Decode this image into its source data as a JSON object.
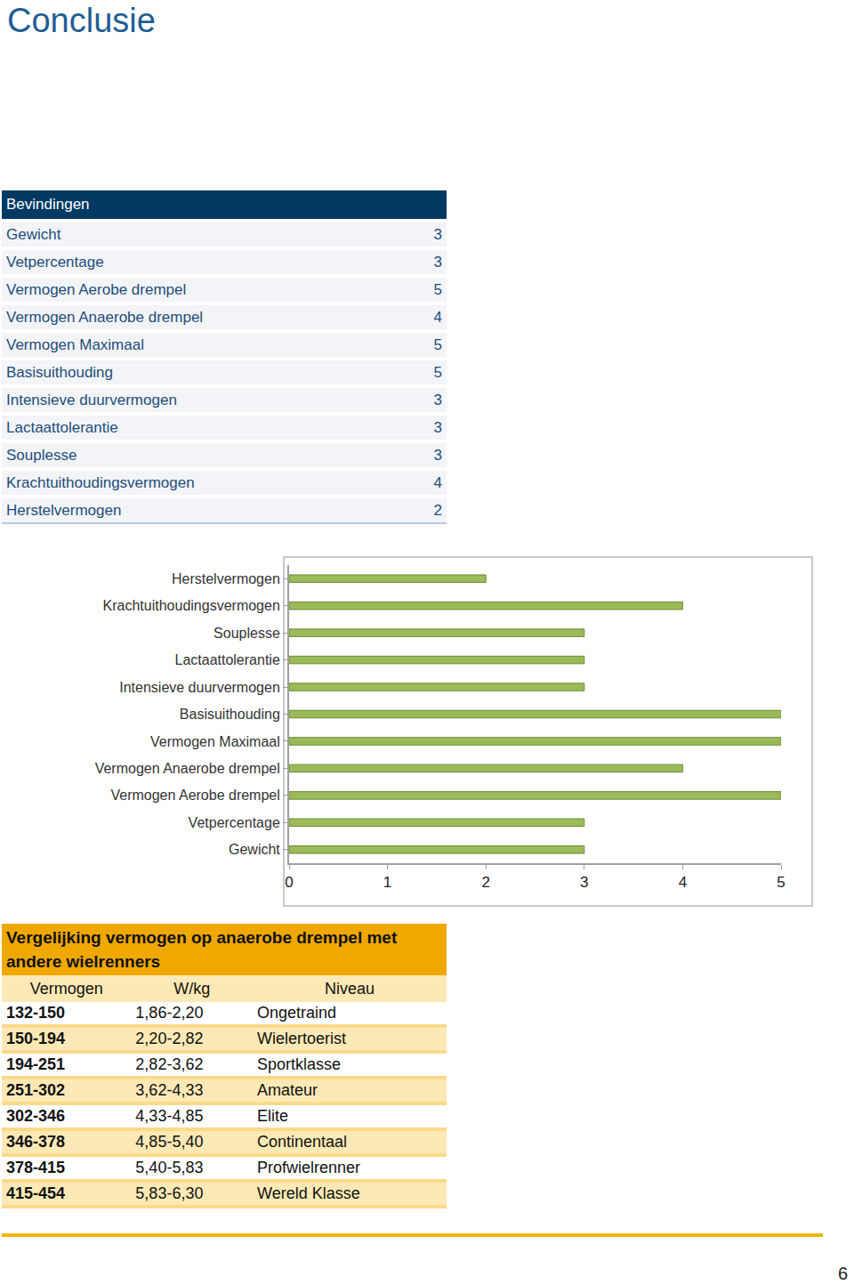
{
  "title": "Conclusie",
  "findings": {
    "header": "Bevindingen",
    "rows": [
      [
        "Gewicht",
        3
      ],
      [
        "Vetpercentage",
        3
      ],
      [
        "Vermogen Aerobe drempel",
        5
      ],
      [
        "Vermogen Anaerobe drempel",
        4
      ],
      [
        "Vermogen Maximaal",
        5
      ],
      [
        "Basisuithouding",
        5
      ],
      [
        "Intensieve duurvermogen",
        3
      ],
      [
        "Lactaattolerantie",
        3
      ],
      [
        "Souplesse",
        3
      ],
      [
        "Krachtuithoudingsvermogen",
        4
      ],
      [
        "Herstelvermogen",
        2
      ]
    ]
  },
  "chart_data": {
    "type": "bar",
    "orientation": "horizontal",
    "categories": [
      "Gewicht",
      "Vetpercentage",
      "Vermogen Aerobe drempel",
      "Vermogen Anaerobe drempel",
      "Vermogen Maximaal",
      "Basisuithouding",
      "Intensieve duurvermogen",
      "Lactaattolerantie",
      "Souplesse",
      "Krachtuithoudingsvermogen",
      "Herstelvermogen"
    ],
    "values": [
      3,
      3,
      5,
      4,
      5,
      5,
      3,
      3,
      3,
      4,
      2
    ],
    "color": "#9bbb59",
    "xlim": [
      0,
      5
    ],
    "xticks": [
      0,
      1,
      2,
      3,
      4,
      5
    ],
    "grid": false
  },
  "comparison": {
    "title": "Vergelijking vermogen op anaerobe drempel met andere wielrenners",
    "columns": [
      "Vermogen",
      "W/kg",
      "Niveau"
    ],
    "rows": [
      [
        "132-150",
        "1,86-2,20",
        "Ongetraind"
      ],
      [
        "150-194",
        "2,20-2,82",
        "Wielertoerist"
      ],
      [
        "194-251",
        "2,82-3,62",
        "Sportklasse"
      ],
      [
        "251-302",
        "3,62-4,33",
        "Amateur"
      ],
      [
        "302-346",
        "4,33-4,85",
        "Elite"
      ],
      [
        "346-378",
        "4,85-5,40",
        "Continentaal"
      ],
      [
        "378-415",
        "5,40-5,83",
        "Profwielrenner"
      ],
      [
        "415-454",
        "5,83-6,30",
        "Wereld Klasse"
      ]
    ]
  },
  "page_number": 6
}
